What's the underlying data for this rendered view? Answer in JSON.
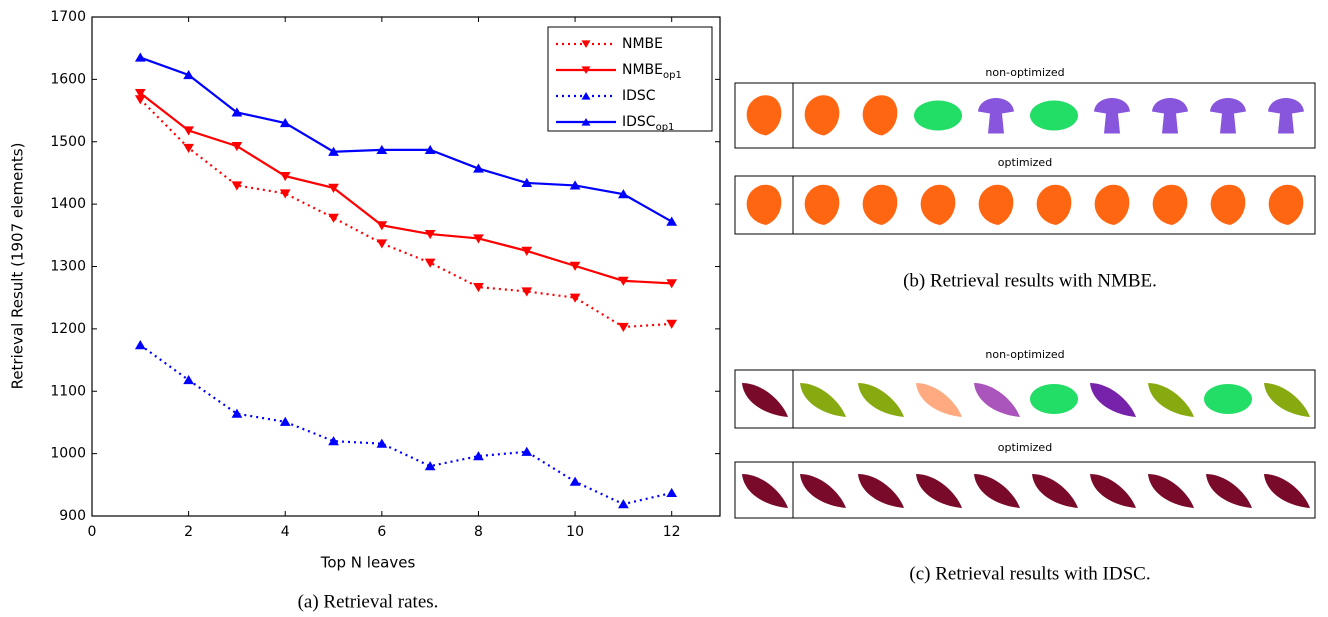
{
  "chart_data": {
    "type": "line",
    "x_label": "Top N leaves",
    "y_label": "Retrieval Result (1907 elements)",
    "caption": "(a) Retrieval rates.",
    "x": [
      1,
      2,
      3,
      4,
      5,
      6,
      7,
      8,
      9,
      10,
      11,
      12
    ],
    "xlim": [
      0,
      13
    ],
    "xticks": [
      0,
      2,
      4,
      6,
      8,
      10,
      12
    ],
    "ylim": [
      900,
      1700
    ],
    "yticks": [
      900,
      1000,
      1100,
      1200,
      1300,
      1400,
      1500,
      1600,
      1700
    ],
    "legend": "upper right",
    "series": [
      {
        "name": "NMBE",
        "color": "#ff0000",
        "linestyle": "dotted",
        "marker": "v",
        "values": [
          1568,
          1490,
          1430,
          1417,
          1378,
          1337,
          1306,
          1267,
          1260,
          1250,
          1203,
          1208
        ]
      },
      {
        "name": "NMBE",
        "name_sub": "op1",
        "color": "#ff0000",
        "linestyle": "solid",
        "marker": "v",
        "values": [
          1578,
          1518,
          1493,
          1445,
          1426,
          1366,
          1352,
          1345,
          1325,
          1301,
          1277,
          1273
        ]
      },
      {
        "name": "IDSC",
        "color": "#0000ff",
        "linestyle": "dotted",
        "marker": "^",
        "values": [
          1174,
          1118,
          1064,
          1051,
          1020,
          1016,
          980,
          996,
          1003,
          955,
          919,
          937
        ]
      },
      {
        "name": "IDSC",
        "name_sub": "op1",
        "color": "#0000ff",
        "linestyle": "solid",
        "marker": "^",
        "values": [
          1635,
          1607,
          1547,
          1530,
          1484,
          1487,
          1487,
          1457,
          1434,
          1430,
          1416,
          1372
        ]
      }
    ]
  },
  "panels": [
    {
      "caption": "(b) Retrieval results with NMBE.",
      "rows": [
        {
          "label": "non-optimized"
        },
        {
          "label": "optimized"
        }
      ]
    },
    {
      "caption": "(c) Retrieval results with IDSC.",
      "rows": [
        {
          "label": "non-optimized"
        },
        {
          "label": "optimized"
        }
      ]
    }
  ]
}
